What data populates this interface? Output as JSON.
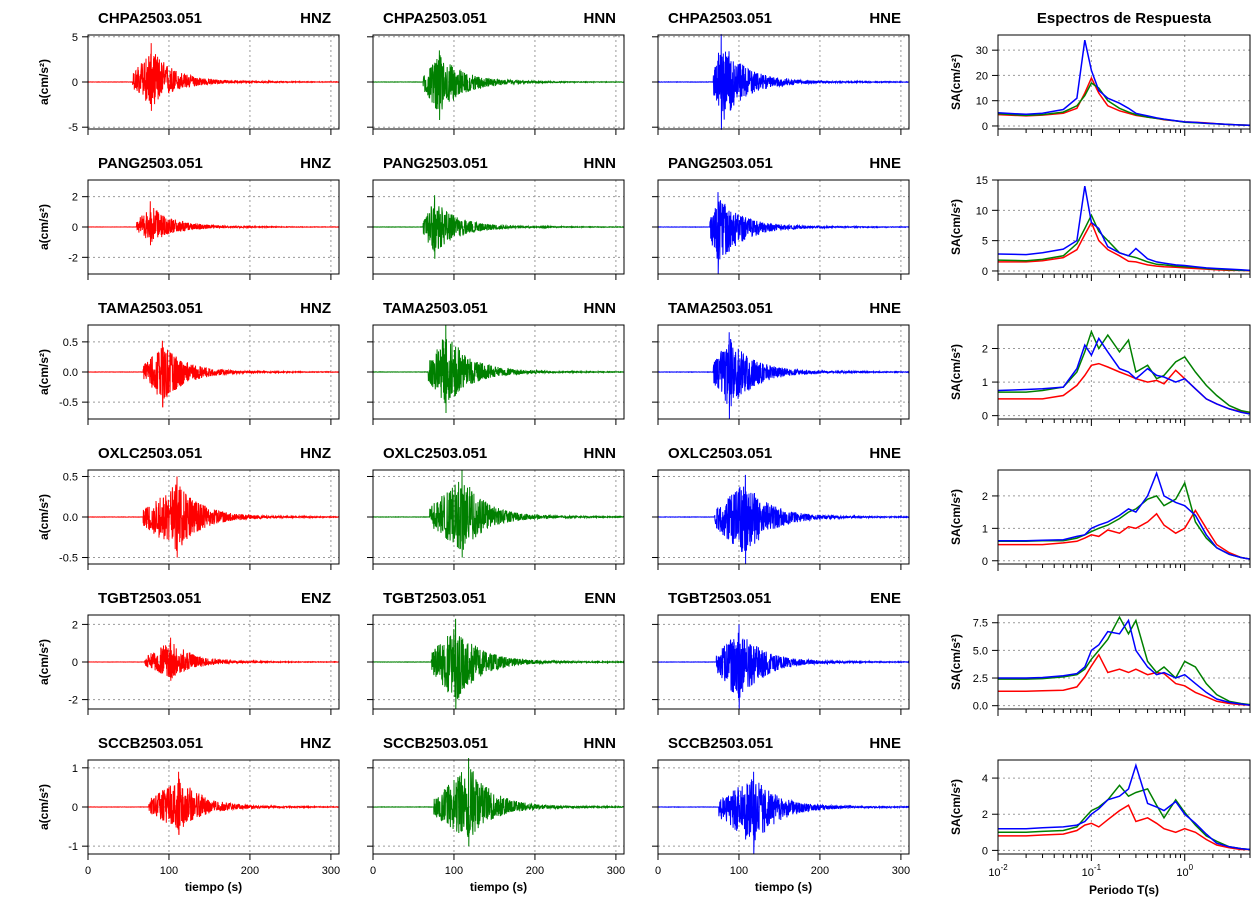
{
  "figure": {
    "spectra_title": "Espectros de Respuesta",
    "time_xlabel": "tiempo (s)",
    "period_xlabel": "Periodo T(s)",
    "accel_ylabel": "a(cm/s²)",
    "sa_ylabel": "SA(cm/s²)"
  },
  "colors": {
    "vertical": "#ff0000",
    "north": "#008000",
    "east": "#0000ff"
  },
  "chart_data": [
    {
      "type": "line",
      "kind": "accelerogram-grid",
      "xlim": [
        0,
        310
      ],
      "xticks": [
        0,
        100,
        200,
        300
      ],
      "xlabel": "tiempo (s)",
      "ylabel": "a(cm/s²)",
      "grid": true,
      "rows": [
        {
          "station": "CHPA2503.051",
          "components": [
            "HNZ",
            "HNN",
            "HNE"
          ],
          "ylim": [
            -5.2,
            5.2
          ],
          "yticks": [
            -5,
            0,
            5
          ],
          "ytick_labels": [
            "-5",
            "0",
            "5"
          ],
          "onsets": [
            55,
            62,
            68
          ],
          "peaks": [
            4.3,
            3.5,
            5.3
          ],
          "min_peaks": [
            -3.2,
            -4.2,
            -5.3
          ],
          "peak_times": [
            78,
            82,
            78
          ]
        },
        {
          "station": "PANG2503.051",
          "components": [
            "HNZ",
            "HNN",
            "HNE"
          ],
          "ylim": [
            -3.1,
            3.1
          ],
          "yticks": [
            -2,
            0,
            2
          ],
          "ytick_labels": [
            "-2",
            "0",
            "2"
          ],
          "onsets": [
            60,
            62,
            64
          ],
          "peaks": [
            1.7,
            2.1,
            2.3
          ],
          "min_peaks": [
            -1.2,
            -2.1,
            -3.1
          ],
          "peak_times": [
            77,
            76,
            74
          ]
        },
        {
          "station": "TAMA2503.051",
          "components": [
            "HNZ",
            "HNN",
            "HNE"
          ],
          "ylim": [
            -0.78,
            0.78
          ],
          "yticks": [
            -0.5,
            0,
            0.5
          ],
          "ytick_labels": [
            "-0.5",
            "0.0",
            "0.5"
          ],
          "onsets": [
            68,
            68,
            68
          ],
          "peaks": [
            0.52,
            0.78,
            0.66
          ],
          "min_peaks": [
            -0.58,
            -0.68,
            -0.78
          ],
          "peak_times": [
            92,
            90,
            88
          ]
        },
        {
          "station": "OXLC2503.051",
          "components": [
            "HNZ",
            "HNN",
            "HNE"
          ],
          "ylim": [
            -0.58,
            0.58
          ],
          "yticks": [
            -0.5,
            0,
            0.5
          ],
          "ytick_labels": [
            "-0.5",
            "0.0",
            "0.5"
          ],
          "onsets": [
            68,
            70,
            70
          ],
          "peaks": [
            0.5,
            0.58,
            0.52
          ],
          "min_peaks": [
            -0.5,
            -0.5,
            -0.58
          ],
          "peak_times": [
            110,
            110,
            108
          ]
        },
        {
          "station": "TGBT2503.051",
          "components": [
            "ENZ",
            "ENN",
            "ENE"
          ],
          "ylim": [
            -2.5,
            2.5
          ],
          "yticks": [
            -2,
            0,
            2
          ],
          "ytick_labels": [
            "-2",
            "0",
            "2"
          ],
          "onsets": [
            70,
            72,
            72
          ],
          "peaks": [
            1.3,
            2.3,
            2.0
          ],
          "min_peaks": [
            -1.0,
            -2.5,
            -2.5
          ],
          "peak_times": [
            102,
            102,
            100
          ]
        },
        {
          "station": "SCCB2503.051",
          "components": [
            "HNZ",
            "HNN",
            "HNE"
          ],
          "ylim": [
            -1.2,
            1.2
          ],
          "yticks": [
            -1,
            0,
            1
          ],
          "ytick_labels": [
            "-1",
            "0",
            "1"
          ],
          "onsets": [
            75,
            75,
            75
          ],
          "peaks": [
            0.9,
            1.25,
            0.9
          ],
          "min_peaks": [
            -0.7,
            -1.0,
            -1.2
          ],
          "peak_times": [
            112,
            118,
            118
          ]
        }
      ]
    },
    {
      "type": "line",
      "kind": "response-spectra",
      "title": "Espectros de Respuesta",
      "xscale": "log",
      "xlim": [
        0.01,
        5
      ],
      "xlabel": "Periodo T(s)",
      "ylabel": "SA(cm/s²)",
      "grid": true,
      "x": [
        0.01,
        0.02,
        0.03,
        0.05,
        0.07,
        0.085,
        0.1,
        0.12,
        0.15,
        0.2,
        0.25,
        0.3,
        0.4,
        0.5,
        0.6,
        0.8,
        1.0,
        1.3,
        1.7,
        2.2,
        3.0,
        4.0,
        5.0
      ],
      "panels": [
        {
          "ylim": [
            -1.2,
            36
          ],
          "yticks": [
            0,
            10,
            20,
            30
          ],
          "ytick_labels": [
            "0",
            "10",
            "20",
            "30"
          ],
          "series": [
            {
              "component": "vertical",
              "values": [
                4.5,
                4.0,
                4.3,
                5.0,
                7.0,
                13.0,
                19.0,
                13.0,
                8.0,
                6.0,
                5.0,
                4.2,
                3.5,
                3.0,
                2.5,
                2.0,
                1.6,
                1.5,
                1.2,
                0.9,
                0.6,
                0.4,
                0.3
              ]
            },
            {
              "component": "north",
              "values": [
                4.8,
                4.2,
                4.5,
                5.5,
                8.0,
                12.0,
                17.0,
                15.0,
                10.0,
                7.0,
                5.5,
                4.5,
                3.5,
                3.0,
                2.6,
                2.0,
                1.5,
                1.3,
                1.0,
                0.8,
                0.6,
                0.4,
                0.3
              ]
            },
            {
              "component": "east",
              "values": [
                5.2,
                4.6,
                5.0,
                6.5,
                11.0,
                34.0,
                22.0,
                14.0,
                11.0,
                9.0,
                7.0,
                5.0,
                4.0,
                3.2,
                2.7,
                2.1,
                1.6,
                1.4,
                1.1,
                0.9,
                0.6,
                0.4,
                0.3
              ]
            }
          ]
        },
        {
          "ylim": [
            -0.5,
            15
          ],
          "yticks": [
            0,
            5,
            10,
            15
          ],
          "ytick_labels": [
            "0",
            "5",
            "10",
            "15"
          ],
          "series": [
            {
              "component": "vertical",
              "values": [
                1.5,
                1.5,
                1.7,
                2.2,
                3.5,
                6.0,
                8.0,
                5.0,
                3.5,
                2.5,
                1.6,
                1.5,
                1.0,
                0.8,
                0.7,
                0.6,
                0.5,
                0.4,
                0.3,
                0.2,
                0.1,
                0.1,
                0.05
              ]
            },
            {
              "component": "north",
              "values": [
                1.8,
                1.7,
                1.9,
                2.5,
                4.5,
                7.0,
                9.2,
                6.5,
                5.0,
                3.0,
                2.5,
                2.2,
                1.5,
                1.1,
                1.0,
                0.8,
                0.7,
                0.6,
                0.4,
                0.3,
                0.2,
                0.1,
                0.1
              ]
            },
            {
              "component": "east",
              "values": [
                2.8,
                2.7,
                3.0,
                3.6,
                5.0,
                14.0,
                8.0,
                7.0,
                4.0,
                3.0,
                2.5,
                3.7,
                2.0,
                1.5,
                1.3,
                1.0,
                0.9,
                0.7,
                0.5,
                0.4,
                0.3,
                0.2,
                0.1
              ]
            }
          ]
        },
        {
          "ylim": [
            -0.1,
            2.7
          ],
          "yticks": [
            0,
            1,
            2
          ],
          "ytick_labels": [
            "0",
            "1",
            "2"
          ],
          "series": [
            {
              "component": "vertical",
              "values": [
                0.5,
                0.5,
                0.5,
                0.6,
                0.9,
                1.2,
                1.5,
                1.55,
                1.45,
                1.3,
                1.2,
                1.1,
                1.0,
                1.05,
                0.95,
                1.35,
                1.1,
                0.8,
                0.5,
                0.35,
                0.2,
                0.12,
                0.1
              ]
            },
            {
              "component": "north",
              "values": [
                0.7,
                0.7,
                0.75,
                0.85,
                1.3,
                1.9,
                2.5,
                2.0,
                2.4,
                1.9,
                2.25,
                1.3,
                1.5,
                1.1,
                1.2,
                1.6,
                1.75,
                1.3,
                0.9,
                0.6,
                0.3,
                0.15,
                0.1
              ]
            },
            {
              "component": "east",
              "values": [
                0.75,
                0.78,
                0.8,
                0.85,
                1.4,
                2.1,
                1.8,
                2.3,
                1.9,
                1.4,
                1.3,
                1.1,
                1.4,
                1.2,
                1.15,
                1.0,
                1.1,
                0.8,
                0.5,
                0.35,
                0.2,
                0.1,
                0.05
              ]
            }
          ]
        },
        {
          "ylim": [
            -0.1,
            2.8
          ],
          "yticks": [
            0,
            1,
            2
          ],
          "ytick_labels": [
            "0",
            "1",
            "2"
          ],
          "series": [
            {
              "component": "vertical",
              "values": [
                0.5,
                0.5,
                0.5,
                0.55,
                0.6,
                0.7,
                0.8,
                0.75,
                0.95,
                0.85,
                1.05,
                1.0,
                1.2,
                1.45,
                1.1,
                0.85,
                1.0,
                1.55,
                1.0,
                0.5,
                0.25,
                0.1,
                0.05
              ]
            },
            {
              "component": "north",
              "values": [
                0.6,
                0.6,
                0.62,
                0.62,
                0.7,
                0.8,
                0.9,
                1.0,
                1.1,
                1.3,
                1.5,
                1.6,
                1.9,
                2.0,
                1.7,
                1.9,
                2.4,
                1.2,
                0.7,
                0.4,
                0.2,
                0.1,
                0.05
              ]
            },
            {
              "component": "east",
              "values": [
                0.62,
                0.62,
                0.63,
                0.65,
                0.75,
                0.8,
                1.0,
                1.1,
                1.2,
                1.4,
                1.6,
                1.5,
                2.0,
                2.7,
                2.0,
                1.8,
                1.7,
                1.4,
                0.8,
                0.4,
                0.2,
                0.1,
                0.05
              ]
            }
          ]
        },
        {
          "ylim": [
            -0.3,
            8.2
          ],
          "yticks": [
            0,
            2.5,
            5,
            7.5
          ],
          "ytick_labels": [
            "0.0",
            "2.5",
            "5.0",
            "7.5"
          ],
          "series": [
            {
              "component": "vertical",
              "values": [
                1.3,
                1.3,
                1.35,
                1.4,
                1.7,
                2.6,
                3.6,
                4.6,
                3.0,
                3.3,
                3.0,
                3.3,
                2.8,
                3.0,
                2.9,
                2.0,
                1.8,
                1.2,
                0.8,
                0.4,
                0.2,
                0.1,
                0.05
              ]
            },
            {
              "component": "north",
              "values": [
                2.4,
                2.4,
                2.45,
                2.6,
                2.8,
                3.3,
                4.2,
                5.0,
                6.0,
                8.0,
                6.5,
                7.7,
                4.0,
                3.0,
                3.5,
                2.5,
                4.0,
                3.5,
                2.0,
                1.0,
                0.4,
                0.2,
                0.1
              ]
            },
            {
              "component": "east",
              "values": [
                2.5,
                2.5,
                2.55,
                2.7,
                2.9,
                3.5,
                5.0,
                5.5,
                6.7,
                6.5,
                7.7,
                5.0,
                3.5,
                2.8,
                3.0,
                2.5,
                2.8,
                2.0,
                1.2,
                0.6,
                0.3,
                0.15,
                0.05
              ]
            }
          ]
        },
        {
          "ylim": [
            -0.2,
            5.0
          ],
          "yticks": [
            0,
            2,
            4
          ],
          "ytick_labels": [
            "0",
            "2",
            "4"
          ],
          "series": [
            {
              "component": "vertical",
              "values": [
                0.8,
                0.8,
                0.85,
                0.9,
                1.1,
                1.4,
                1.5,
                1.3,
                1.7,
                2.2,
                2.5,
                1.6,
                1.8,
                1.5,
                1.2,
                1.0,
                1.2,
                1.0,
                0.6,
                0.3,
                0.15,
                0.05,
                0.05
              ]
            },
            {
              "component": "north",
              "values": [
                1.0,
                1.0,
                1.05,
                1.1,
                1.3,
                1.8,
                2.2,
                2.4,
                2.8,
                3.6,
                3.0,
                3.2,
                3.4,
                2.5,
                1.8,
                2.8,
                2.1,
                1.4,
                0.8,
                0.5,
                0.2,
                0.1,
                0.05
              ]
            },
            {
              "component": "east",
              "values": [
                1.2,
                1.2,
                1.25,
                1.3,
                1.4,
                1.6,
                2.0,
                2.3,
                2.8,
                3.0,
                3.4,
                4.7,
                2.6,
                2.4,
                2.2,
                2.7,
                2.0,
                1.5,
                0.9,
                0.4,
                0.2,
                0.1,
                0.05
              ]
            }
          ]
        }
      ]
    }
  ]
}
